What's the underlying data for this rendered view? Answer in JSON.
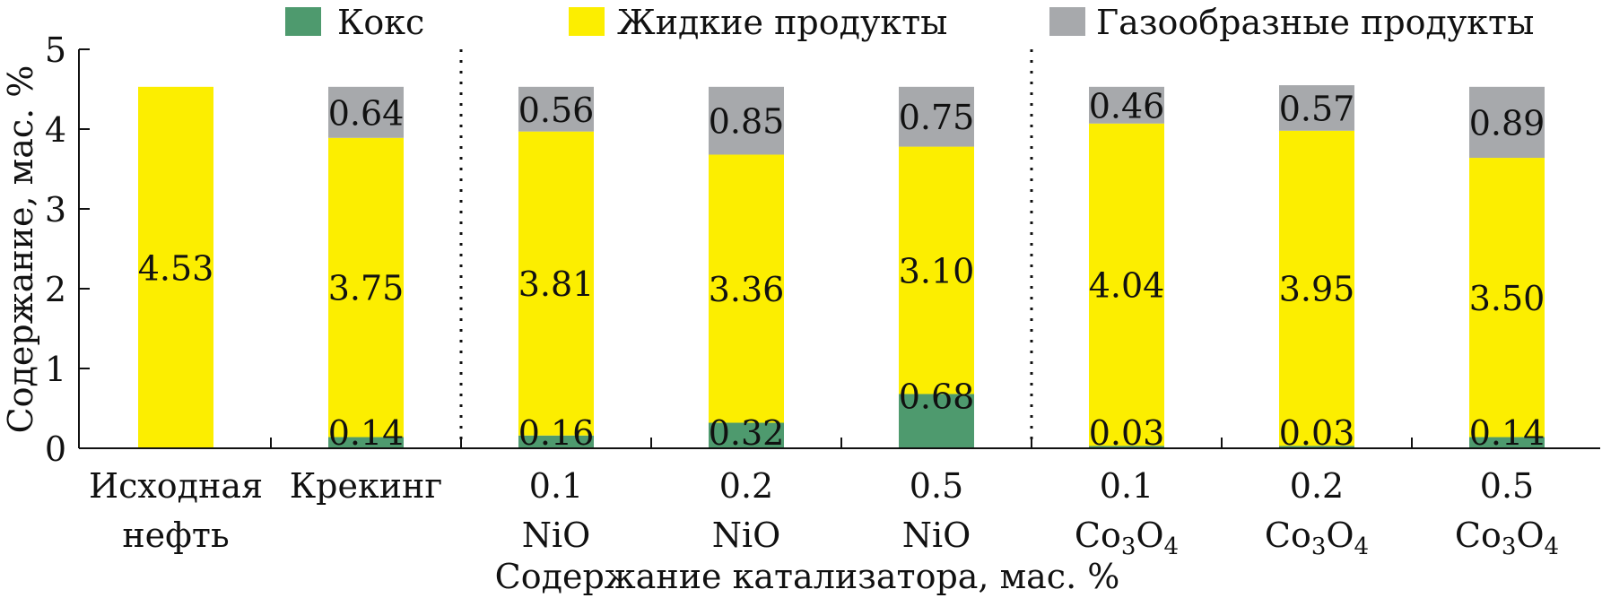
{
  "chart_data": {
    "type": "bar",
    "stacked": true,
    "categories": [
      {
        "line1": "Исходная",
        "line2": "нефть",
        "sub": ""
      },
      {
        "line1": "Крекинг",
        "line2": "",
        "sub": ""
      },
      {
        "line1": "0.1",
        "line2": "NiO",
        "sub": ""
      },
      {
        "line1": "0.2",
        "line2": "NiO",
        "sub": ""
      },
      {
        "line1": "0.5",
        "line2": "NiO",
        "sub": ""
      },
      {
        "line1": "0.1",
        "line2": "Co3O4",
        "sub": "3|4"
      },
      {
        "line1": "0.2",
        "line2": "Co3O4",
        "sub": "3|4"
      },
      {
        "line1": "0.5",
        "line2": "Co3O4",
        "sub": "3|4"
      }
    ],
    "series": [
      {
        "name": "Кокс",
        "color": "#4e9a6e",
        "values": [
          0,
          0.14,
          0.16,
          0.32,
          0.68,
          0.03,
          0.03,
          0.14
        ],
        "labels": [
          "",
          "0.14",
          "0.16",
          "0.32",
          "0.68",
          "0.03",
          "0.03",
          "0.14"
        ]
      },
      {
        "name": "Жидкие продукты",
        "color": "#fcee00",
        "values": [
          4.53,
          3.75,
          3.81,
          3.36,
          3.1,
          4.04,
          3.95,
          3.5
        ],
        "labels": [
          "4.53",
          "3.75",
          "3.81",
          "3.36",
          "3.10",
          "4.04",
          "3.95",
          "3.50"
        ]
      },
      {
        "name": "Газообразные продукты",
        "color": "#a7a9ac",
        "values": [
          0,
          0.64,
          0.56,
          0.85,
          0.75,
          0.46,
          0.57,
          0.89
        ],
        "labels": [
          "",
          "0.64",
          "0.56",
          "0.85",
          "0.75",
          "0.46",
          "0.57",
          "0.89"
        ]
      }
    ],
    "ylabel": "Содержание, мас. %",
    "xlabel": "Содержание катализатора, мас. %",
    "ylim": [
      0,
      5
    ],
    "yticks": [
      "0",
      "1",
      "2",
      "3",
      "4",
      "5"
    ],
    "separators_after_category": [
      1,
      4
    ],
    "legend_position": "top",
    "grid": false
  }
}
